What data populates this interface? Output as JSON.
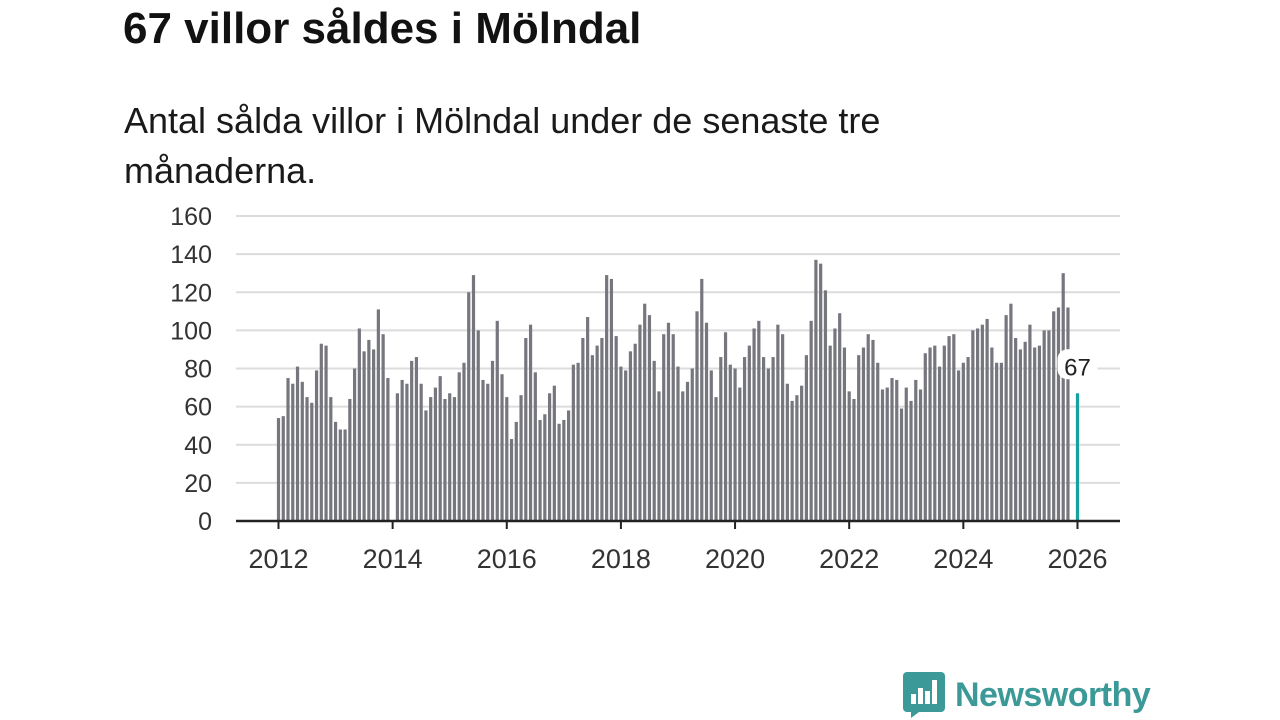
{
  "title": "67 villor såldes i Mölndal",
  "subtitle": "Antal sålda villor i Mölndal under de senaste tre månaderna.",
  "logo": {
    "text": "Newsworthy",
    "color": "#3b9a98"
  },
  "colors": {
    "bar": "#76767e",
    "highlight": "#14a3a0",
    "grid": "#dcdcdc"
  },
  "chart_data": {
    "type": "bar",
    "title": "67 villor såldes i Mölndal",
    "xlabel": "",
    "ylabel": "",
    "ylim": [
      0,
      160
    ],
    "yticks": [
      0,
      20,
      40,
      60,
      80,
      100,
      120,
      140,
      160
    ],
    "xticks": [
      "2012",
      "2014",
      "2016",
      "2018",
      "2020",
      "2022",
      "2024",
      "2026"
    ],
    "start": "2012-01",
    "end": "2026-01",
    "highlight_label": "67",
    "series": [
      {
        "name": "Antal sålda villor",
        "values": [
          54,
          55,
          75,
          72,
          81,
          73,
          65,
          62,
          79,
          93,
          92,
          65,
          52,
          48,
          48,
          64,
          80,
          101,
          89,
          95,
          90,
          111,
          98,
          75,
          0,
          67,
          74,
          72,
          84,
          86,
          72,
          58,
          65,
          70,
          76,
          64,
          67,
          65,
          78,
          83,
          120,
          129,
          100,
          74,
          72,
          84,
          105,
          77,
          65,
          43,
          52,
          66,
          96,
          103,
          78,
          53,
          56,
          67,
          71,
          51,
          53,
          58,
          82,
          83,
          96,
          107,
          87,
          92,
          96,
          129,
          127,
          97,
          81,
          79,
          89,
          93,
          103,
          114,
          108,
          84,
          68,
          98,
          104,
          98,
          81,
          68,
          73,
          80,
          110,
          127,
          104,
          79,
          65,
          86,
          99,
          82,
          80,
          70,
          86,
          92,
          101,
          105,
          86,
          80,
          86,
          103,
          98,
          72,
          63,
          66,
          71,
          87,
          105,
          137,
          135,
          121,
          92,
          101,
          109,
          91,
          68,
          64,
          87,
          91,
          98,
          95,
          83,
          69,
          70,
          75,
          74,
          59,
          70,
          63,
          74,
          69,
          88,
          91,
          92,
          81,
          92,
          97,
          98,
          79,
          83,
          86,
          100,
          101,
          103,
          106,
          91,
          83,
          83,
          108,
          114,
          96,
          90,
          94,
          103,
          91,
          92,
          100,
          100,
          110,
          112,
          130,
          112,
          0,
          67
        ]
      }
    ]
  }
}
